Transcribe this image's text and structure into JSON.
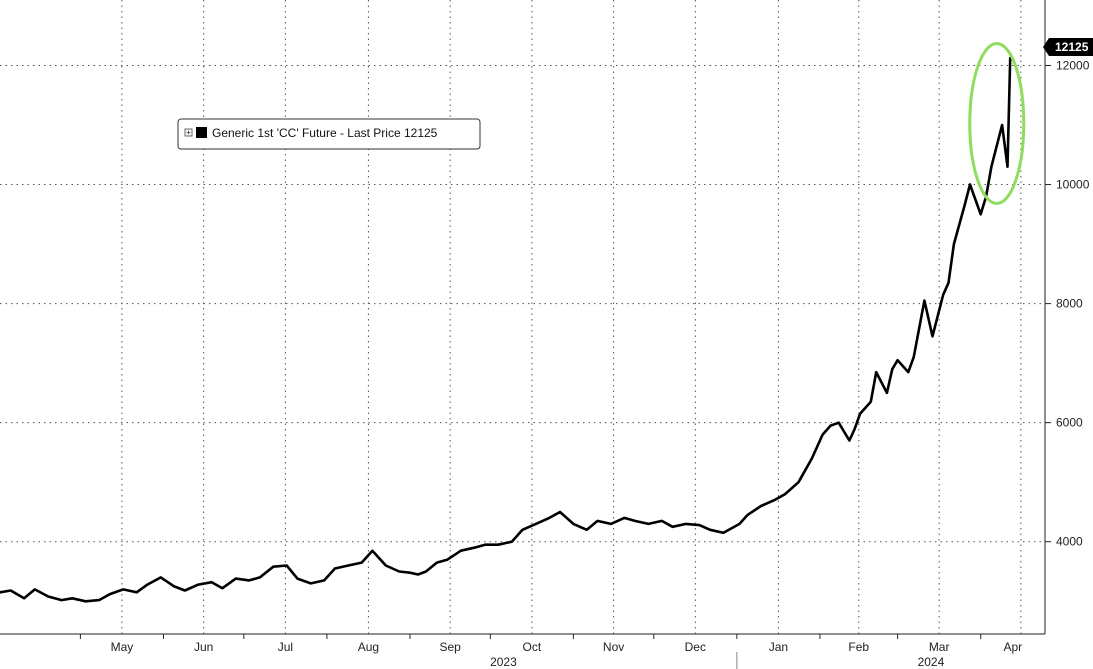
{
  "chart_data": {
    "type": "line",
    "series": [
      {
        "name": "Generic 1st 'CC' Future - Last Price",
        "color": "#000000",
        "last_value": 12125,
        "x": [
          "2023-04-01",
          "2023-04-05",
          "2023-04-10",
          "2023-04-14",
          "2023-04-19",
          "2023-04-24",
          "2023-04-28",
          "2023-05-03",
          "2023-05-08",
          "2023-05-12",
          "2023-05-17",
          "2023-05-22",
          "2023-05-26",
          "2023-05-31",
          "2023-06-05",
          "2023-06-09",
          "2023-06-14",
          "2023-06-19",
          "2023-06-23",
          "2023-06-28",
          "2023-07-03",
          "2023-07-07",
          "2023-07-12",
          "2023-07-17",
          "2023-07-21",
          "2023-07-26",
          "2023-07-31",
          "2023-08-04",
          "2023-08-09",
          "2023-08-14",
          "2023-08-18",
          "2023-08-23",
          "2023-08-28",
          "2023-09-01",
          "2023-09-04",
          "2023-09-07",
          "2023-09-11",
          "2023-09-15",
          "2023-09-20",
          "2023-09-25",
          "2023-09-29",
          "2023-10-04",
          "2023-10-09",
          "2023-10-13",
          "2023-10-18",
          "2023-10-23",
          "2023-10-27",
          "2023-11-01",
          "2023-11-06",
          "2023-11-10",
          "2023-11-15",
          "2023-11-20",
          "2023-11-24",
          "2023-11-29",
          "2023-12-04",
          "2023-12-08",
          "2023-12-13",
          "2023-12-18",
          "2023-12-22",
          "2023-12-27",
          "2024-01-02",
          "2024-01-05",
          "2024-01-10",
          "2024-01-15",
          "2024-01-19",
          "2024-01-24",
          "2024-01-29",
          "2024-02-02",
          "2024-02-05",
          "2024-02-08",
          "2024-02-12",
          "2024-02-14",
          "2024-02-16",
          "2024-02-20",
          "2024-02-22",
          "2024-02-26",
          "2024-02-28",
          "2024-03-01",
          "2024-03-05",
          "2024-03-07",
          "2024-03-11",
          "2024-03-14",
          "2024-03-18",
          "2024-03-20",
          "2024-03-22",
          "2024-03-26",
          "2024-03-28",
          "2024-04-01",
          "2024-04-03",
          "2024-04-05",
          "2024-04-09",
          "2024-04-11",
          "2024-04-12"
        ],
        "values": [
          3150,
          3180,
          3050,
          3200,
          3080,
          3020,
          3050,
          3000,
          3020,
          3120,
          3200,
          3150,
          3280,
          3400,
          3250,
          3180,
          3280,
          3320,
          3220,
          3380,
          3350,
          3400,
          3580,
          3600,
          3380,
          3300,
          3350,
          3550,
          3600,
          3650,
          3850,
          3600,
          3500,
          3480,
          3450,
          3500,
          3650,
          3700,
          3850,
          3900,
          3950,
          3950,
          4000,
          4200,
          4300,
          4400,
          4500,
          4300,
          4200,
          4350,
          4300,
          4400,
          4350,
          4300,
          4350,
          4250,
          4300,
          4280,
          4200,
          4150,
          4300,
          4450,
          4600,
          4700,
          4800,
          5000,
          5400,
          5800,
          5950,
          6000,
          5700,
          5900,
          6150,
          6350,
          6850,
          6500,
          6900,
          7050,
          6850,
          7100,
          8050,
          7450,
          8150,
          8350,
          9000,
          9650,
          10000,
          9500,
          9800,
          10300,
          11000,
          10300,
          12125
        ]
      }
    ],
    "legend": "Generic 1st 'CC' Future - Last Price 12125",
    "legend_position": "top-left",
    "x_month_labels": [
      "May",
      "Jun",
      "Jul",
      "Aug",
      "Sep",
      "Oct",
      "Nov",
      "Dec",
      "Jan",
      "Feb",
      "Mar",
      "Apr"
    ],
    "x_year_labels": [
      "2023",
      "2024"
    ],
    "y_ticks": [
      4000,
      6000,
      8000,
      10000,
      12000
    ],
    "y_tick_labels": [
      "4000",
      "6000",
      "8000",
      "10000",
      "12000"
    ],
    "ylim": [
      2450,
      13100
    ],
    "xlim": [
      "2023-04-01",
      "2024-04-25"
    ],
    "last_value_label": "12125",
    "grid": true,
    "highlight": "green ellipse around April 2024 spike",
    "highlight_color": "#8fdc5f"
  }
}
